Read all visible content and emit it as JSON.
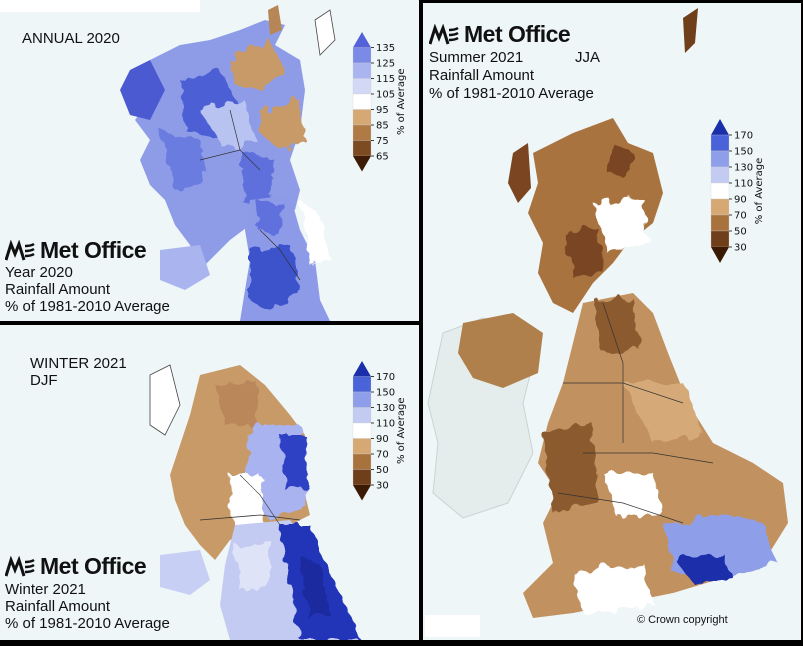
{
  "panels": {
    "annual": {
      "corner_label": "ANNUAL 2020",
      "logo_text": "Met Office",
      "caption": [
        "Year 2020",
        "Rainfall Amount",
        "% of 1981-2010 Average"
      ],
      "colorbar": {
        "ticks": [
          "135",
          "125",
          "115",
          "105",
          "95",
          "85",
          "75",
          "65"
        ],
        "colors": [
          "#5561d8",
          "#7b8ae6",
          "#aab5ef",
          "#d3d8f6",
          "#ffffff",
          "#d5a874",
          "#b07a45",
          "#7d4b22",
          "#3d1c07"
        ],
        "title": "% of Average"
      }
    },
    "winter": {
      "corner_label": [
        "WINTER 2021",
        "DJF"
      ],
      "logo_text": "Met Office",
      "caption": [
        "Winter 2021",
        "Rainfall Amount",
        "% of 1981-2010 Average"
      ],
      "colorbar": {
        "ticks": [
          "170",
          "150",
          "130",
          "110",
          "90",
          "70",
          "50",
          "30"
        ],
        "colors": [
          "#1c2faa",
          "#4b63d8",
          "#8f9ee9",
          "#c4cbf3",
          "#ffffff",
          "#d5a874",
          "#a8723d",
          "#6e3f1a",
          "#3a1a05"
        ],
        "title": "% of Average"
      }
    },
    "summer": {
      "logo_text": "Met Office",
      "caption": [
        "Summer 2021",
        "Rainfall Amount",
        "% of 1981-2010 Average"
      ],
      "season_code": "JJA",
      "colorbar": {
        "ticks": [
          "170",
          "150",
          "130",
          "110",
          "90",
          "70",
          "50",
          "30"
        ],
        "colors": [
          "#1c2faa",
          "#4b63d8",
          "#8f9ee9",
          "#c4cbf3",
          "#ffffff",
          "#d5a874",
          "#a8723d",
          "#6e3f1a",
          "#3a1a05"
        ],
        "title": "% of Average"
      },
      "copyright": "© Crown copyright"
    }
  }
}
